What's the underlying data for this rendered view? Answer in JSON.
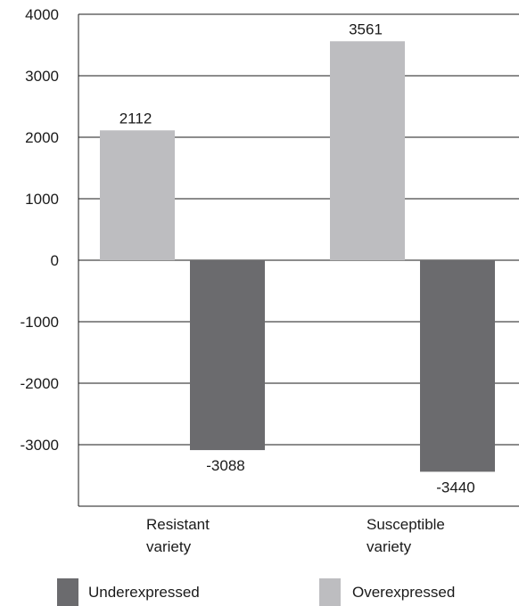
{
  "chart_data": {
    "type": "bar",
    "categories": [
      [
        "Resistant",
        "variety"
      ],
      [
        "Susceptible",
        "variety"
      ]
    ],
    "series": [
      {
        "name": "Overexpressed",
        "values": [
          2112,
          3561
        ],
        "color": "#bdbdc0"
      },
      {
        "name": "Underexpressed",
        "values": [
          -3088,
          -3440
        ],
        "color": "#6b6b6e"
      }
    ],
    "y_ticks": [
      4000,
      3000,
      2000,
      1000,
      0,
      -1000,
      -2000,
      -3000
    ],
    "ylim": [
      -4000,
      4000
    ],
    "grid": true,
    "legend": {
      "placement": "bottom",
      "order": [
        "Underexpressed",
        "Overexpressed"
      ]
    },
    "title": "",
    "xlabel": "",
    "ylabel": ""
  }
}
